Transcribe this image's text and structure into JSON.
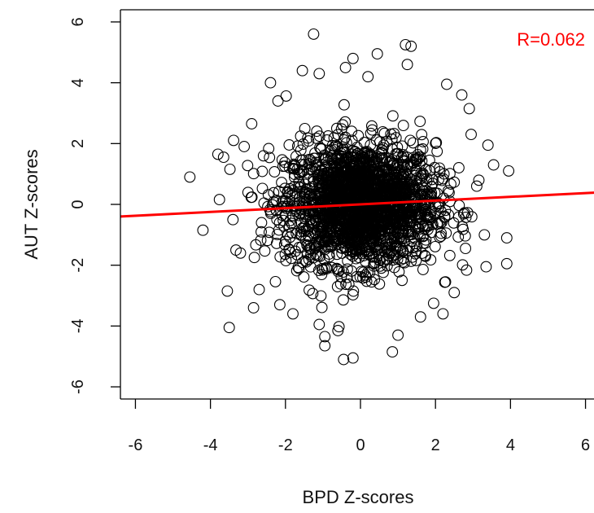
{
  "chart_data": {
    "type": "scatter",
    "title": "",
    "xlabel": "BPD Z-scores",
    "ylabel": "AUT Z-scores",
    "xlim": [
      -6.4,
      6.4
    ],
    "ylim": [
      -6.4,
      6.4
    ],
    "xticks": [
      "-6",
      "-4",
      "-2",
      "0",
      "2",
      "4",
      "6"
    ],
    "yticks": [
      "-6",
      "-4",
      "-2",
      "0",
      "2",
      "4",
      "6"
    ],
    "grid": false,
    "annotation": {
      "text": "R=0.062",
      "color": "#ff0000",
      "position": "top-right"
    },
    "regression_line": {
      "slope": 0.062,
      "intercept": 0.0,
      "color": "#ff0000"
    },
    "marker": "open-circle",
    "marker_color": "#000000",
    "point_cloud": {
      "center": [
        0,
        0
      ],
      "sd_x": 1.0,
      "sd_y": 1.0
    },
    "points": [
      [
        -4.55,
        0.9
      ],
      [
        -4.2,
        -0.85
      ],
      [
        -3.8,
        1.65
      ],
      [
        -3.65,
        1.55
      ],
      [
        -3.5,
        -4.05
      ],
      [
        -3.55,
        -2.85
      ],
      [
        -3.4,
        -0.5
      ],
      [
        -3.1,
        1.9
      ],
      [
        -2.85,
        -3.4
      ],
      [
        -2.4,
        4.0
      ],
      [
        -2.15,
        -3.3
      ],
      [
        -1.55,
        4.4
      ],
      [
        -1.25,
        5.6
      ],
      [
        -1.1,
        4.3
      ],
      [
        -1.1,
        -3.95
      ],
      [
        -0.95,
        -4.35
      ],
      [
        -0.95,
        -4.65
      ],
      [
        -0.6,
        -4.15
      ],
      [
        -0.45,
        -5.1
      ],
      [
        -0.2,
        -5.05
      ],
      [
        -0.4,
        4.5
      ],
      [
        -0.2,
        4.8
      ],
      [
        0.45,
        4.95
      ],
      [
        1.2,
        5.25
      ],
      [
        1.35,
        5.2
      ],
      [
        1.25,
        4.6
      ],
      [
        1.0,
        -4.3
      ],
      [
        0.85,
        -4.85
      ],
      [
        1.6,
        -3.7
      ],
      [
        2.2,
        -3.6
      ],
      [
        2.5,
        -2.9
      ],
      [
        2.7,
        3.6
      ],
      [
        2.9,
        3.15
      ],
      [
        3.4,
        1.95
      ],
      [
        3.55,
        1.3
      ],
      [
        3.9,
        -1.1
      ],
      [
        3.95,
        1.1
      ],
      [
        3.9,
        -1.95
      ],
      [
        3.35,
        -2.05
      ],
      [
        2.8,
        -1.45
      ],
      [
        -2.9,
        2.65
      ],
      [
        2.95,
        2.3
      ],
      [
        -3.2,
        -1.6
      ],
      [
        3.1,
        0.6
      ],
      [
        -2.7,
        -2.8
      ],
      [
        -2.2,
        3.4
      ],
      [
        2.3,
        3.95
      ],
      [
        1.95,
        -3.25
      ],
      [
        -1.8,
        -3.6
      ],
      [
        0.2,
        4.2
      ]
    ]
  }
}
